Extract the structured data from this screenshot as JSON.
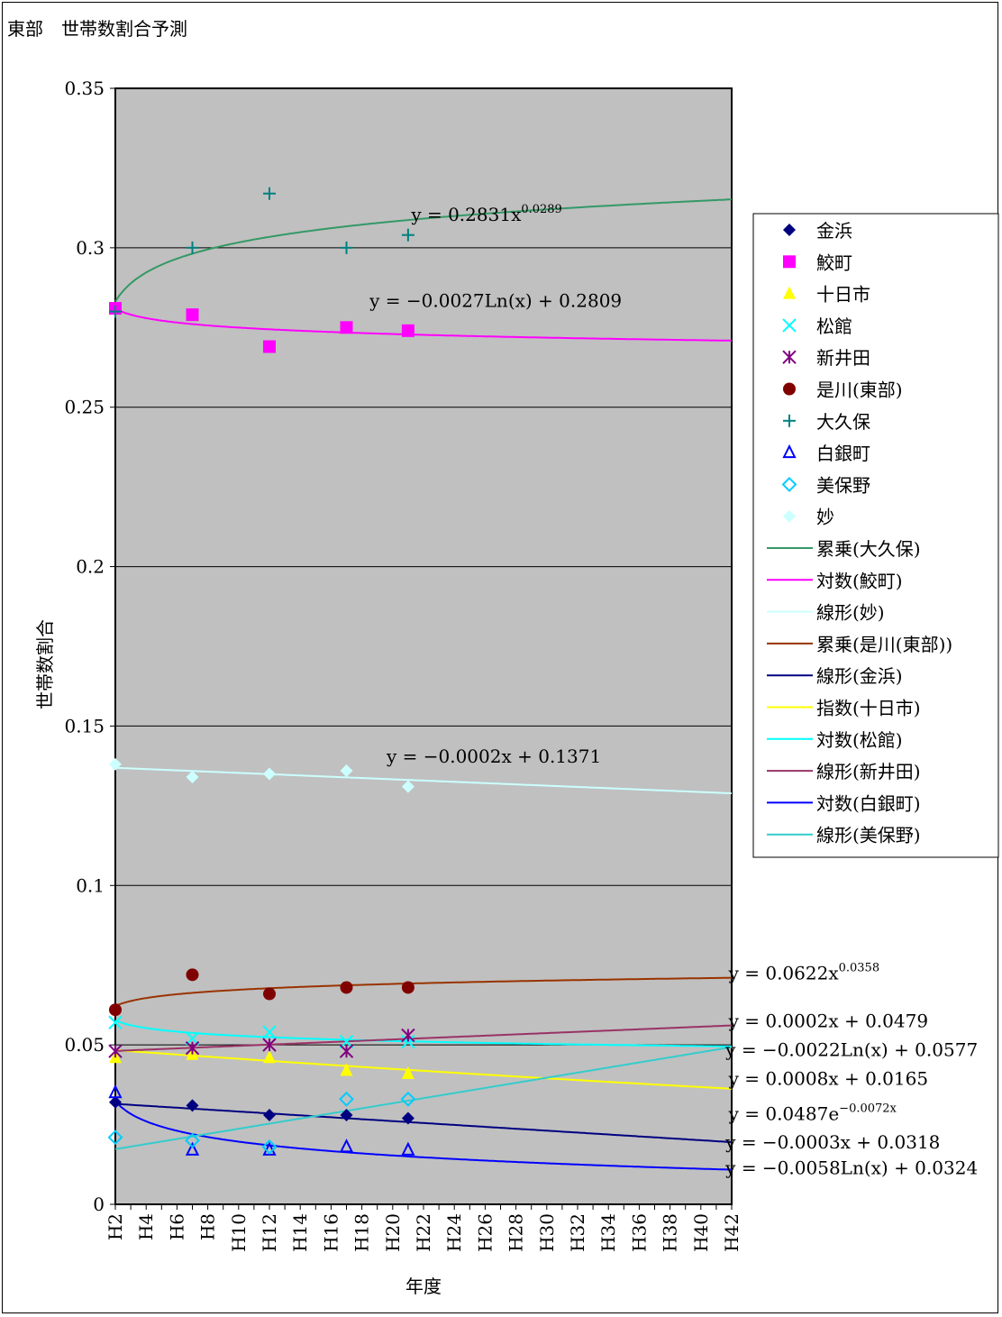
{
  "chart_data": {
    "type": "scatter",
    "title": "東部　世帯数割合予測",
    "xlabel": "年度",
    "ylabel": "世帯数割合",
    "ylim": [
      0,
      0.35
    ],
    "yticks": [
      0,
      0.05,
      0.1,
      0.15,
      0.2,
      0.25,
      0.3,
      0.35
    ],
    "ytick_labels": [
      "0",
      "0.05",
      "0.1",
      "0.15",
      "0.2",
      "0.25",
      "0.3",
      "0.35"
    ],
    "xlim": [
      1,
      41
    ],
    "xtick_labels": [
      "H2",
      "H4",
      "H6",
      "H8",
      "H10",
      "H12",
      "H14",
      "H16",
      "H18",
      "H20",
      "H22",
      "H24",
      "H26",
      "H28",
      "H30",
      "H32",
      "H34",
      "H36",
      "H38",
      "H40",
      "H42"
    ],
    "grid": true,
    "background": "#c0c0c0",
    "legend_position": "right",
    "series": [
      {
        "name": "金浜",
        "marker": "diamond",
        "color": "#000080",
        "x": [
          1,
          6,
          11,
          16,
          20
        ],
        "y": [
          0.032,
          0.031,
          0.028,
          0.028,
          0.027
        ]
      },
      {
        "name": "鮫町",
        "marker": "square",
        "color": "#ff00ff",
        "x": [
          1,
          6,
          11,
          16,
          20
        ],
        "y": [
          0.281,
          0.279,
          0.269,
          0.275,
          0.274
        ]
      },
      {
        "name": "十日市",
        "marker": "triangle",
        "color": "#ffff00",
        "x": [
          1,
          6,
          11,
          16,
          20
        ],
        "y": [
          0.046,
          0.047,
          0.046,
          0.042,
          0.041
        ]
      },
      {
        "name": "松館",
        "marker": "x",
        "color": "#00ffff",
        "x": [
          1,
          6,
          11,
          16,
          20
        ],
        "y": [
          0.057,
          0.052,
          0.054,
          0.051,
          0.051
        ]
      },
      {
        "name": "新井田",
        "marker": "asterisk",
        "color": "#800080",
        "x": [
          1,
          6,
          11,
          16,
          20
        ],
        "y": [
          0.048,
          0.049,
          0.05,
          0.048,
          0.053
        ]
      },
      {
        "name": "是川(東部)",
        "marker": "circle",
        "color": "#800000",
        "x": [
          1,
          6,
          11,
          16,
          20
        ],
        "y": [
          0.061,
          0.072,
          0.066,
          0.068,
          0.068
        ]
      },
      {
        "name": "大久保",
        "marker": "plus",
        "color": "#008080",
        "x": [
          1,
          6,
          11,
          16,
          20
        ],
        "y": [
          0.28,
          0.3,
          0.317,
          0.3,
          0.304
        ]
      },
      {
        "name": "白銀町",
        "marker": "triangle-open",
        "color": "#0000ff",
        "x": [
          1,
          6,
          11,
          16,
          20
        ],
        "y": [
          0.035,
          0.017,
          0.017,
          0.018,
          0.017
        ]
      },
      {
        "name": "美保野",
        "marker": "diamond-open",
        "color": "#00ccff",
        "x": [
          1,
          6,
          11,
          16,
          20
        ],
        "y": [
          0.021,
          0.02,
          0.018,
          0.033,
          0.033
        ]
      },
      {
        "name": "妙",
        "marker": "diamond",
        "color": "#ccffff",
        "x": [
          1,
          6,
          11,
          16,
          20
        ],
        "y": [
          0.138,
          0.134,
          0.135,
          0.136,
          0.131
        ]
      }
    ],
    "trendlines": [
      {
        "name": "累乗(大久保)",
        "kind": "power",
        "a": 0.2831,
        "b": 0.0289,
        "color": "#339966",
        "equation": "y = 0.2831x",
        "equation_exp": "0.0289",
        "label_x": 20.2,
        "label_y": 0.3085
      },
      {
        "name": "対数(鮫町)",
        "kind": "log",
        "a": -0.0027,
        "b": 0.2809,
        "color": "#ff00ff",
        "equation": "y = −0.0027Ln(x) + 0.2809",
        "equation_exp": "",
        "label_x": 17.5,
        "label_y": 0.2815
      },
      {
        "name": "線形(妙)",
        "kind": "linear",
        "a": -0.0002,
        "b": 0.1371,
        "color": "#ccffff",
        "equation": "y = −0.0002x + 0.1371",
        "equation_exp": "",
        "label_x": 18.6,
        "label_y": 0.1385
      },
      {
        "name": "累乗(是川(東部))",
        "kind": "power",
        "a": 0.0622,
        "b": 0.0358,
        "color": "#993300",
        "equation": "y = 0.0622x",
        "equation_exp": "0.0358",
        "label_x": 40.8,
        "label_y": 0.0705
      },
      {
        "name": "線形(金浜)",
        "kind": "linear",
        "a": -0.0003,
        "b": 0.0318,
        "color": "#000080",
        "equation": "y = −0.0003x + 0.0318",
        "equation_exp": "",
        "label_x": 40.6,
        "label_y": 0.0175
      },
      {
        "name": "指数(十日市)",
        "kind": "exp",
        "a": 0.0487,
        "b": -0.0072,
        "color": "#ffff00",
        "equation": "y = 0.0487e",
        "equation_exp": "−0.0072x",
        "label_x": 40.8,
        "label_y": 0.0265
      },
      {
        "name": "対数(松館)",
        "kind": "log",
        "a": -0.0022,
        "b": 0.0577,
        "color": "#00ffff",
        "equation": "y = −0.0022Ln(x) + 0.0577",
        "equation_exp": "",
        "label_x": 40.6,
        "label_y": 0.0465
      },
      {
        "name": "線形(新井田)",
        "kind": "linear",
        "a": 0.0002,
        "b": 0.0479,
        "color": "#993366",
        "equation": "y = 0.0002x + 0.0479",
        "equation_exp": "",
        "label_x": 40.8,
        "label_y": 0.0555
      },
      {
        "name": "対数(白銀町)",
        "kind": "log",
        "a": -0.0058,
        "b": 0.0324,
        "color": "#0000ff",
        "equation": "y = −0.0058Ln(x) + 0.0324",
        "equation_exp": "",
        "label_x": 40.6,
        "label_y": 0.0095
      },
      {
        "name": "線形(美保野)",
        "kind": "linear",
        "a": 0.0008,
        "b": 0.0165,
        "color": "#33cccc",
        "equation": "y = 0.0008x + 0.0165",
        "equation_exp": "",
        "label_x": 40.8,
        "label_y": 0.0375
      }
    ]
  }
}
